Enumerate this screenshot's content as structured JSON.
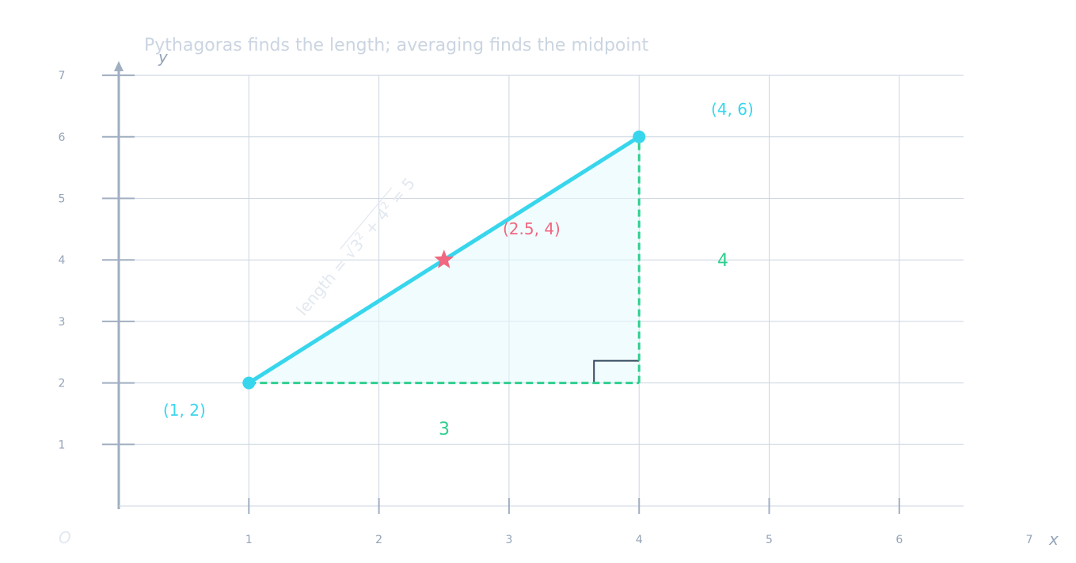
{
  "title": "Pythagoras finds the length; averaging finds the midpoint",
  "colors": {
    "segment": "#38d6ec",
    "legs": "#2ecf8f",
    "midpoint": "#f0677f",
    "grid": "#cbd5e1",
    "axis": "#a0afc0",
    "fill": "#e6fafd",
    "right_angle": "#334a5e"
  },
  "axes": {
    "x_label": "x",
    "y_label": "y",
    "origin_label": "O",
    "x_ticks": [
      "1",
      "2",
      "3",
      "4",
      "5",
      "6",
      "7"
    ],
    "y_ticks": [
      "1",
      "2",
      "3",
      "4",
      "5",
      "6",
      "7"
    ]
  },
  "points": {
    "a": {
      "label": "(1, 2)",
      "x": 1,
      "y": 2
    },
    "b": {
      "label": "(4, 6)",
      "x": 4,
      "y": 6
    },
    "midpoint": {
      "label": "(2.5, 4)",
      "x": 2.5,
      "y": 4,
      "marker": "star-icon"
    }
  },
  "legs": {
    "horizontal": "3",
    "vertical": "4"
  },
  "formula": {
    "lhs": "length = ",
    "radicand": "3",
    "plus": " + 4",
    "exp": "2",
    "rhs": " = 5"
  }
}
